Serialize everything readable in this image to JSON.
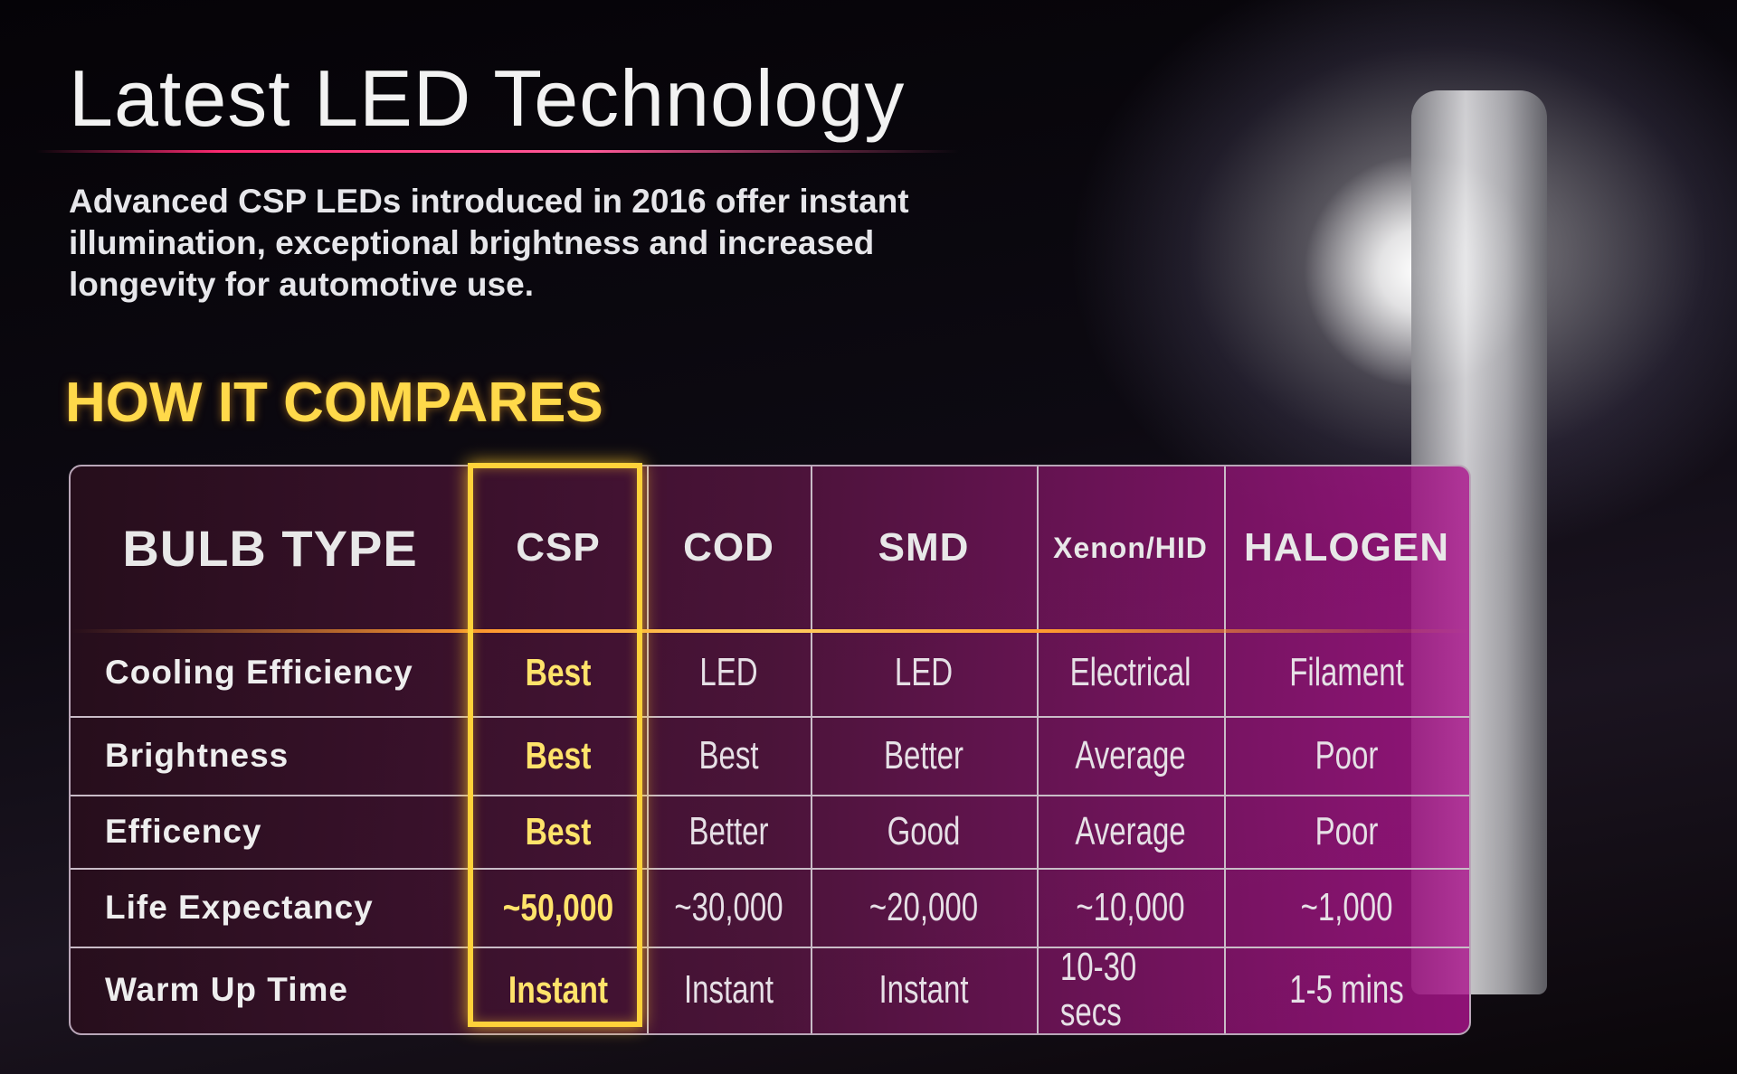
{
  "header": {
    "title": "Latest LED Technology",
    "description": [
      "Advanced CSP LEDs introduced in 2016 offer instant",
      "illumination, exceptional brightness and increased",
      "longevity for automotive use."
    ]
  },
  "comparison": {
    "heading": "HOW IT COMPARES",
    "table": {
      "columns": [
        "BULB TYPE",
        "CSP",
        "COD",
        "SMD",
        "Xenon/HID",
        "HALOGEN"
      ],
      "rows": [
        [
          "Cooling Efficiency",
          "Best",
          "LED",
          "LED",
          "Electrical",
          "Filament"
        ],
        [
          "Brightness",
          "Best",
          "Best",
          "Better",
          "Average",
          "Poor"
        ],
        [
          "Efficency",
          "Best",
          "Better",
          "Good",
          "Average",
          "Poor"
        ],
        [
          "Life Expectancy",
          "~50,000",
          "~30,000",
          "~20,000",
          "~10,000",
          "~1,000"
        ],
        [
          "Warm Up Time",
          "Instant",
          "Instant",
          "Instant",
          "10-30 secs",
          "1-5 mins"
        ]
      ]
    }
  }
}
